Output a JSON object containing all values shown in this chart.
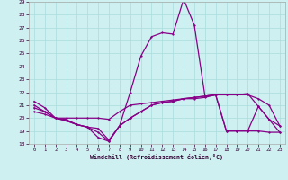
{
  "xlabel": "Windchill (Refroidissement éolien,°C)",
  "background_color": "#cef0f0",
  "grid_color": "#aadddd",
  "line_color": "#880088",
  "x_values": [
    0,
    1,
    2,
    3,
    4,
    5,
    6,
    7,
    8,
    9,
    10,
    11,
    12,
    13,
    14,
    15,
    16,
    17,
    18,
    19,
    20,
    21,
    22,
    23
  ],
  "series1": [
    21.3,
    20.8,
    20.0,
    19.9,
    19.5,
    19.3,
    19.2,
    18.3,
    19.4,
    22.0,
    24.8,
    26.3,
    26.6,
    26.5,
    29.2,
    27.2,
    21.7,
    21.8,
    21.8,
    21.8,
    21.9,
    20.9,
    19.9,
    19.4
  ],
  "series2": [
    21.0,
    20.5,
    20.0,
    20.0,
    20.0,
    20.0,
    20.0,
    19.9,
    20.5,
    21.0,
    21.1,
    21.2,
    21.3,
    21.4,
    21.5,
    21.6,
    21.7,
    21.8,
    21.8,
    21.8,
    21.8,
    21.5,
    21.0,
    19.4
  ],
  "series3": [
    20.8,
    20.5,
    20.0,
    19.8,
    19.5,
    19.3,
    18.5,
    18.2,
    19.4,
    20.0,
    20.5,
    21.0,
    21.2,
    21.3,
    21.5,
    21.6,
    21.7,
    21.8,
    19.0,
    19.0,
    19.0,
    19.0,
    18.9,
    18.9
  ],
  "series4": [
    20.5,
    20.3,
    20.0,
    19.8,
    19.5,
    19.3,
    18.9,
    18.2,
    19.4,
    20.0,
    20.5,
    21.0,
    21.2,
    21.3,
    21.5,
    21.5,
    21.6,
    21.8,
    19.0,
    19.0,
    19.0,
    20.9,
    19.9,
    18.9
  ],
  "ylim": [
    18,
    29
  ],
  "xlim": [
    -0.5,
    23.5
  ],
  "yticks": [
    18,
    19,
    20,
    21,
    22,
    23,
    24,
    25,
    26,
    27,
    28,
    29
  ],
  "xticks": [
    0,
    1,
    2,
    3,
    4,
    5,
    6,
    7,
    8,
    9,
    10,
    11,
    12,
    13,
    14,
    15,
    16,
    17,
    18,
    19,
    20,
    21,
    22,
    23
  ]
}
